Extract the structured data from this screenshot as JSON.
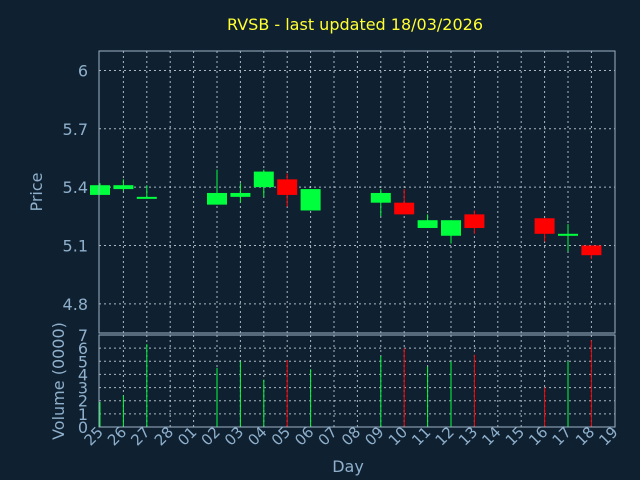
{
  "chart_data": {
    "type": "candlestick",
    "title": "RVSB - last updated 18/03/2026",
    "xlabel": "Day",
    "price_panel": {
      "ylabel": "Price",
      "yticks": [
        "6",
        "5.7",
        "5.4",
        "5.1",
        "4.8"
      ],
      "ylim": [
        4.65,
        6.1
      ],
      "grid": true
    },
    "volume_panel": {
      "ylabel": "Volume (0000)",
      "yticks": [
        "7",
        "6",
        "5",
        "4",
        "3",
        "2",
        "1",
        "0"
      ],
      "ylim": [
        0,
        7
      ],
      "grid": true
    },
    "x_labels": [
      "25",
      "26",
      "27",
      "28",
      "01",
      "02",
      "03",
      "04",
      "05",
      "06",
      "07",
      "08",
      "09",
      "10",
      "11",
      "12",
      "13",
      "14",
      "15",
      "16",
      "17",
      "18",
      "19"
    ],
    "colors": {
      "up": "#00ff3c",
      "down": "#ff0000"
    },
    "candles": [
      {
        "day": "25",
        "open": 5.36,
        "close": 5.41,
        "high": 5.42,
        "low": 5.36,
        "volume": 1.9
      },
      {
        "day": "26",
        "open": 5.39,
        "close": 5.41,
        "high": 5.44,
        "low": 5.38,
        "volume": 2.4
      },
      {
        "day": "27",
        "open": 5.35,
        "close": 5.35,
        "high": 5.41,
        "low": 5.35,
        "volume": 6.3
      },
      {
        "day": "02",
        "open": 5.31,
        "close": 5.37,
        "high": 5.49,
        "low": 5.31,
        "volume": 4.5
      },
      {
        "day": "03",
        "open": 5.35,
        "close": 5.37,
        "high": 5.42,
        "low": 5.32,
        "volume": 5.0
      },
      {
        "day": "04",
        "open": 5.4,
        "close": 5.48,
        "high": 5.49,
        "low": 5.35,
        "volume": 3.6
      },
      {
        "day": "05",
        "open": 5.44,
        "close": 5.36,
        "high": 5.47,
        "low": 5.3,
        "volume": 5.1
      },
      {
        "day": "06",
        "open": 5.28,
        "close": 5.39,
        "high": 5.39,
        "low": 5.28,
        "volume": 4.4
      },
      {
        "day": "09",
        "open": 5.32,
        "close": 5.37,
        "high": 5.39,
        "low": 5.25,
        "volume": 5.4
      },
      {
        "day": "10",
        "open": 5.32,
        "close": 5.26,
        "high": 5.39,
        "low": 5.26,
        "volume": 6.0
      },
      {
        "day": "11",
        "open": 5.19,
        "close": 5.23,
        "high": 5.26,
        "low": 5.19,
        "volume": 4.6
      },
      {
        "day": "12",
        "open": 5.15,
        "close": 5.23,
        "high": 5.23,
        "low": 5.11,
        "volume": 5.0
      },
      {
        "day": "13",
        "open": 5.26,
        "close": 5.19,
        "high": 5.28,
        "low": 5.16,
        "volume": 5.5
      },
      {
        "day": "16",
        "open": 5.24,
        "close": 5.16,
        "high": 5.24,
        "low": 5.12,
        "volume": 3.0
      },
      {
        "day": "17",
        "open": 5.15,
        "close": 5.16,
        "high": 5.21,
        "low": 5.07,
        "volume": 5.0
      },
      {
        "day": "18",
        "open": 5.1,
        "close": 5.05,
        "high": 5.1,
        "low": 5.03,
        "volume": 6.6
      }
    ]
  }
}
